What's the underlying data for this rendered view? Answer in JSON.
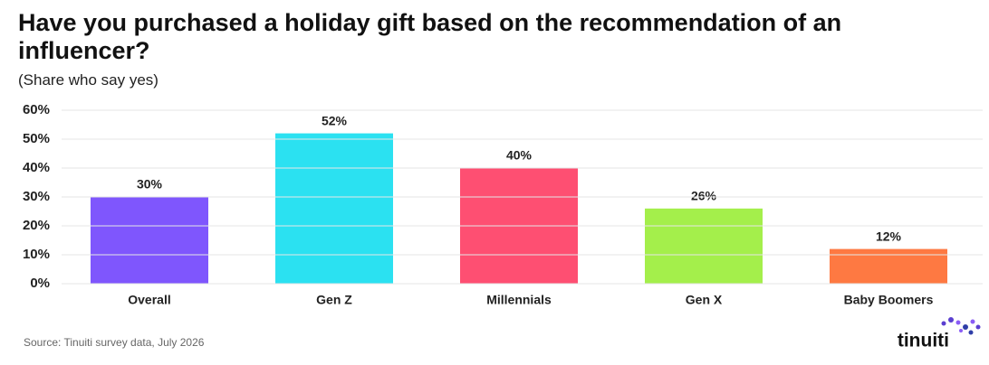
{
  "chart_data": {
    "type": "bar",
    "title": "Have you purchased a holiday gift based on the recommendation of an influencer?",
    "subtitle": "(Share who say yes)",
    "categories": [
      "Overall",
      "Gen Z",
      "Millennials",
      "Gen X",
      "Baby Boomers"
    ],
    "values": [
      30,
      52,
      40,
      26,
      12
    ],
    "value_labels": [
      "30%",
      "52%",
      "40%",
      "26%",
      "12%"
    ],
    "colors": [
      "#7f56fd",
      "#2be1f1",
      "#fe4f72",
      "#a4ef4b",
      "#fe7942"
    ],
    "ylim": [
      0,
      60
    ],
    "yticks": [
      {
        "value": 0,
        "label": "0%"
      },
      {
        "value": 10,
        "label": "10%"
      },
      {
        "value": 20,
        "label": "20%"
      },
      {
        "value": 30,
        "label": "30%"
      },
      {
        "value": 40,
        "label": "40%"
      },
      {
        "value": 50,
        "label": "50%"
      },
      {
        "value": 60,
        "label": "60%"
      }
    ],
    "grid": true,
    "source": "Source: Tinuiti survey data, July 2026",
    "logo": "tinuiti"
  }
}
